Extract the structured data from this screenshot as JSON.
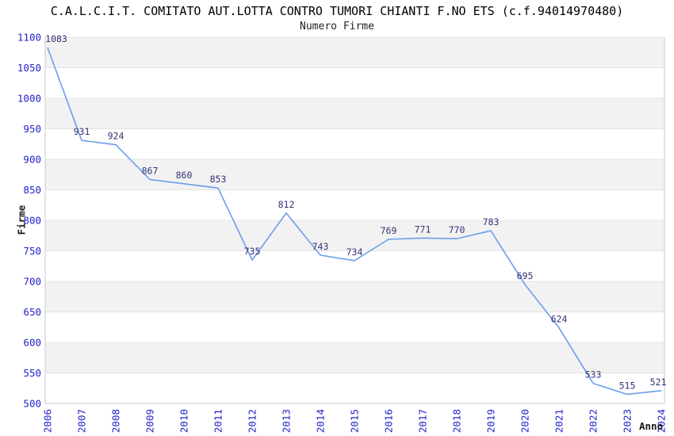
{
  "title": "C.A.L.C.I.T. COMITATO AUT.LOTTA CONTRO TUMORI CHIANTI F.NO ETS (c.f.94014970480)",
  "subtitle": "Numero Firme",
  "chart_data": {
    "type": "line",
    "title": "C.A.L.C.I.T. COMITATO AUT.LOTTA CONTRO TUMORI CHIANTI F.NO ETS (c.f.94014970480)",
    "subtitle": "Numero Firme",
    "xlabel": "Anno",
    "ylabel": "Firme",
    "x": [
      "2006",
      "2007",
      "2008",
      "2009",
      "2010",
      "2011",
      "2012",
      "2013",
      "2014",
      "2015",
      "2016",
      "2017",
      "2018",
      "2019",
      "2020",
      "2021",
      "2022",
      "2023",
      "2024"
    ],
    "series": [
      {
        "name": "Numero Firme",
        "values": [
          1083,
          931,
          924,
          867,
          860,
          853,
          735,
          812,
          743,
          734,
          769,
          771,
          770,
          783,
          695,
          624,
          533,
          515,
          521
        ]
      }
    ],
    "ylim": [
      500,
      1100
    ],
    "ytick_step": 50,
    "yticks": [
      500,
      550,
      600,
      650,
      700,
      750,
      800,
      850,
      900,
      950,
      1000,
      1050,
      1100
    ],
    "grid": "horizontal gridlines every 50 with alternating gray/white bands",
    "legend": "none",
    "point_labels": true,
    "x_tick_rotation": -90
  },
  "colors": {
    "line": "#6c9eeb",
    "axis_tick_label": "#2323cc",
    "point_label": "#333377",
    "band_gray": "#f2f2f2",
    "band_white": "#ffffff",
    "gridline": "#e4e4e4",
    "border": "#c9c9c9",
    "title": "#000000",
    "axis_title": "#1a1a1a"
  }
}
